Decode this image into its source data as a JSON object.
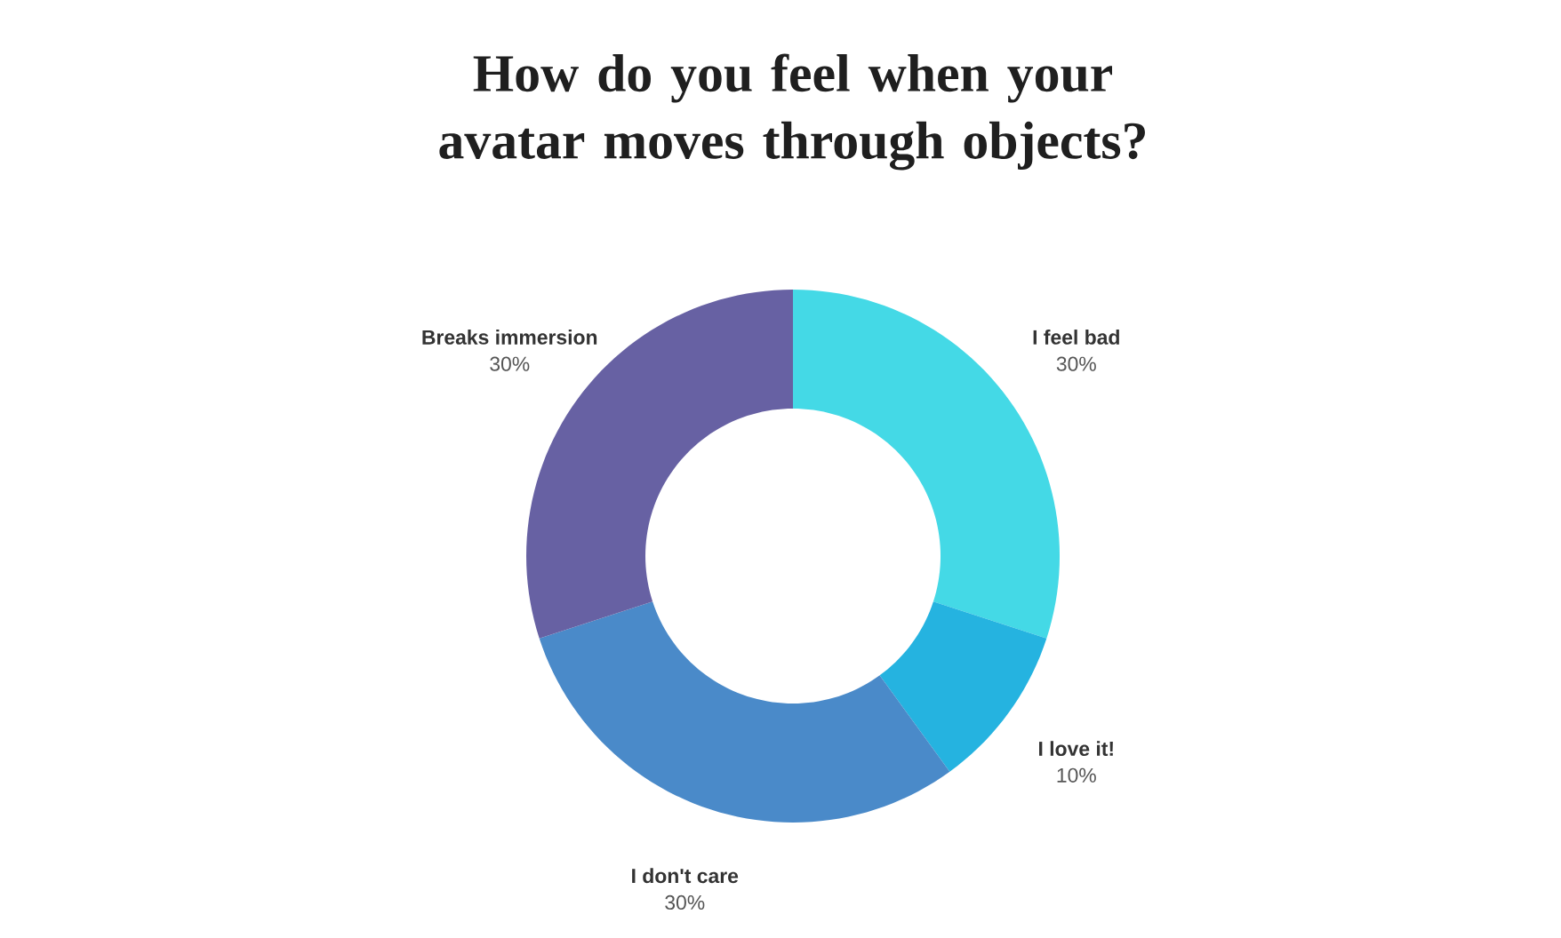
{
  "chart_data": {
    "type": "donut",
    "title": "How do you feel when your avatar moves through objects?",
    "categories": [
      "I feel bad",
      "I love it!",
      "I don't care",
      "Breaks immersion"
    ],
    "values": [
      30,
      10,
      30,
      30
    ],
    "value_labels": [
      "30%",
      "10%",
      "30%",
      "30%"
    ],
    "colors": [
      "#44d9e6",
      "#25b3e0",
      "#4a8ac9",
      "#6761a3"
    ]
  }
}
